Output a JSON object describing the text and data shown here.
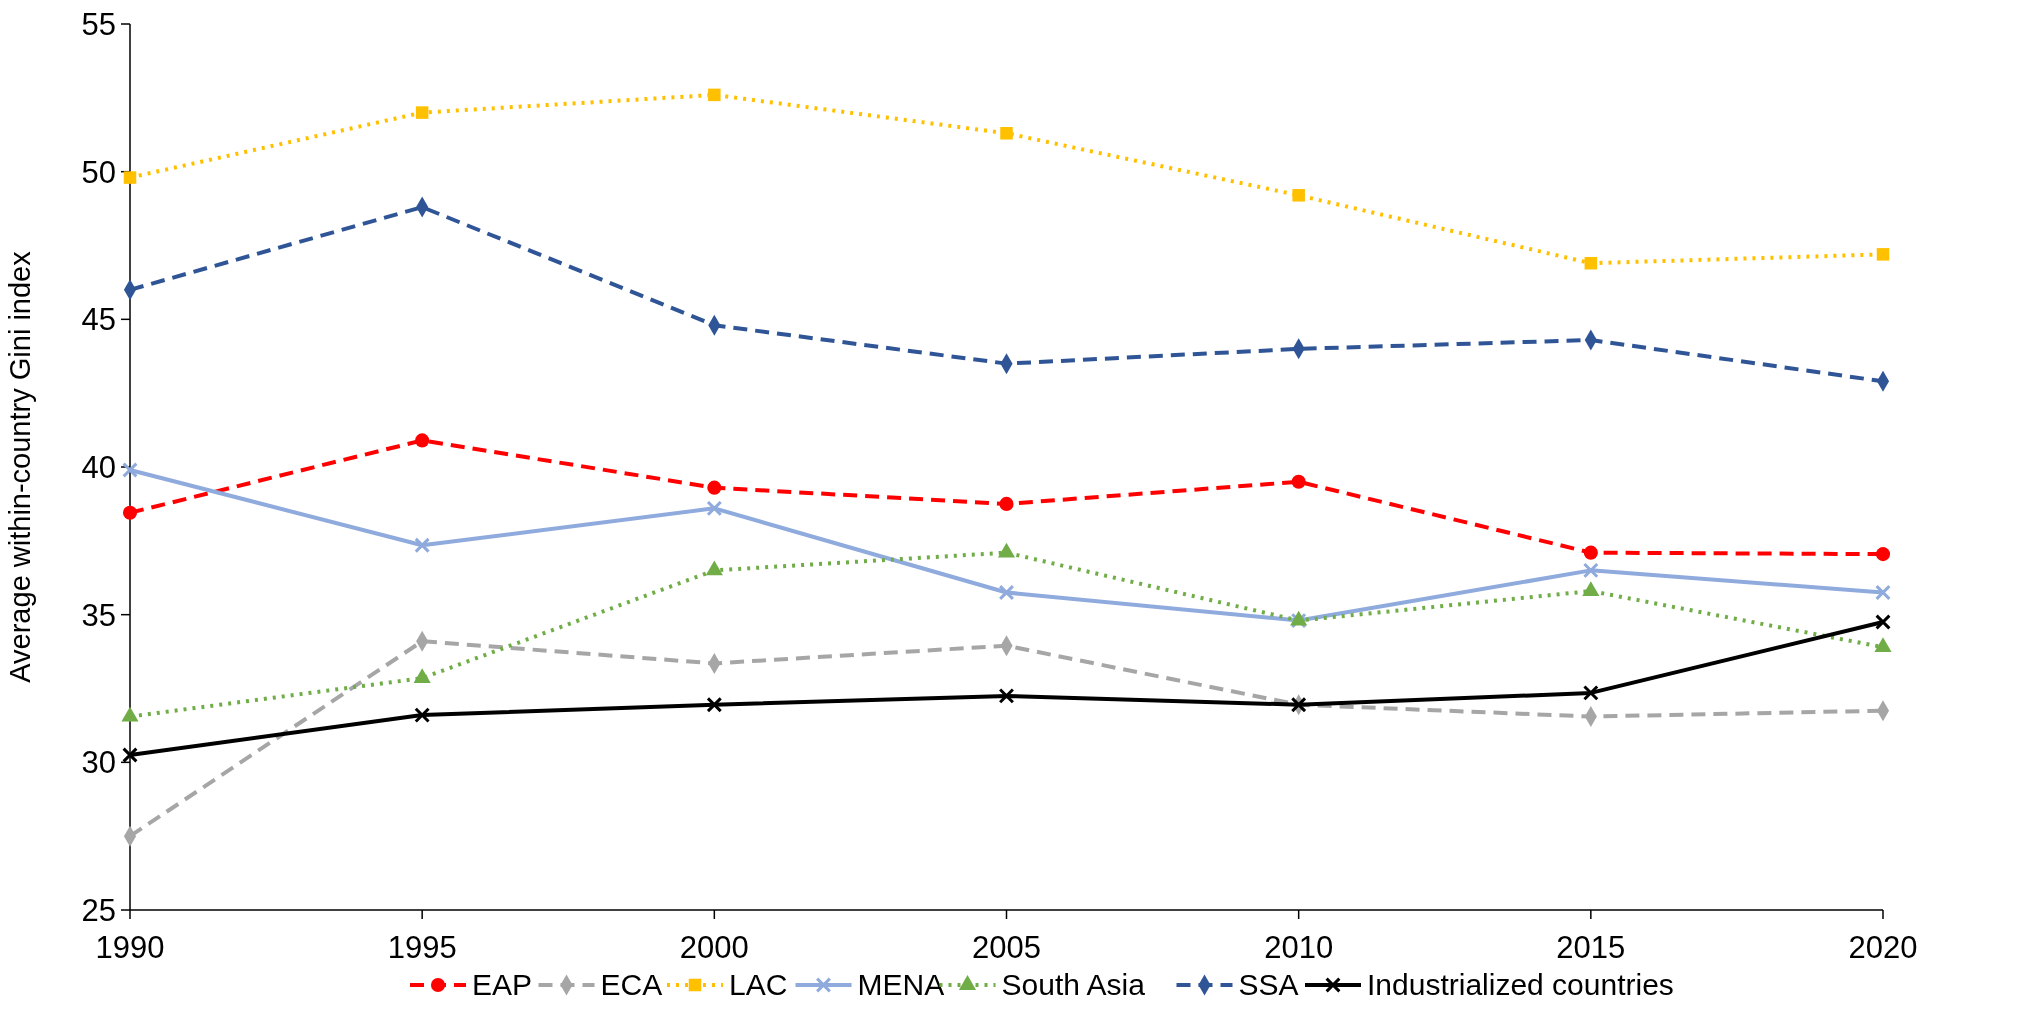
{
  "chart_data": {
    "type": "line",
    "ylabel": "Average within-country Gini index",
    "x": [
      1990,
      1995,
      2000,
      2005,
      2010,
      2015,
      2020
    ],
    "xlim": [
      1990,
      2020
    ],
    "xticks": [
      1990,
      1995,
      2000,
      2005,
      2010,
      2015,
      2020
    ],
    "ylim": [
      25,
      55
    ],
    "yticks": [
      25,
      30,
      35,
      40,
      45,
      50,
      55
    ],
    "grid": false,
    "legend": "bottom",
    "series": [
      {
        "name": "EAP",
        "color": "#ff0000",
        "marker": "circle",
        "line_style": "dashed",
        "values": [
          38.45,
          40.9,
          39.3,
          38.75,
          39.5,
          37.1,
          37.05
        ]
      },
      {
        "name": "ECA",
        "color": "#a6a6a6",
        "marker": "diamond",
        "line_style": "dashed",
        "values": [
          27.5,
          34.1,
          33.35,
          33.95,
          31.95,
          31.55,
          31.75
        ]
      },
      {
        "name": "LAC",
        "color": "#ffc000",
        "marker": "square",
        "line_style": "dotted",
        "values": [
          49.8,
          52.0,
          52.6,
          51.3,
          49.2,
          46.9,
          47.2
        ]
      },
      {
        "name": "MENA",
        "color": "#8faadc",
        "marker": "cross",
        "line_style": "solid",
        "values": [
          39.9,
          37.35,
          38.6,
          35.75,
          34.8,
          36.5,
          35.75
        ]
      },
      {
        "name": "South Asia",
        "color": "#70ad47",
        "marker": "triangle",
        "line_style": "dotted",
        "values": [
          31.55,
          32.85,
          36.5,
          37.1,
          34.8,
          35.8,
          33.9
        ]
      },
      {
        "name": "SSA",
        "color": "#2f5597",
        "marker": "diamond",
        "line_style": "dashed",
        "values": [
          46.0,
          48.8,
          44.8,
          43.5,
          44.0,
          44.3,
          42.9
        ]
      },
      {
        "name": "Industrialized countries",
        "color": "#000000",
        "marker": "cross",
        "line_style": "solid",
        "values": [
          30.25,
          31.6,
          31.95,
          32.25,
          31.95,
          32.35,
          34.75
        ]
      }
    ]
  }
}
